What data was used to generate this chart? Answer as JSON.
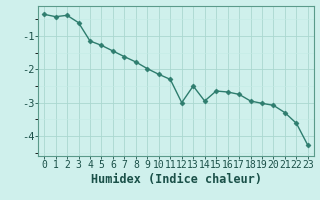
{
  "xlabel": "Humidex (Indice chaleur)",
  "x_values": [
    0,
    1,
    2,
    3,
    4,
    5,
    6,
    7,
    8,
    9,
    10,
    11,
    12,
    13,
    14,
    15,
    16,
    17,
    18,
    19,
    20,
    21,
    22,
    23
  ],
  "y_values": [
    -0.35,
    -0.42,
    -0.38,
    -0.6,
    -1.15,
    -1.28,
    -1.45,
    -1.62,
    -1.78,
    -1.98,
    -2.15,
    -2.3,
    -3.0,
    -2.5,
    -2.95,
    -2.65,
    -2.68,
    -2.75,
    -2.95,
    -3.02,
    -3.08,
    -3.3,
    -3.62,
    -4.28
  ],
  "line_color": "#2e7d6e",
  "marker": "D",
  "marker_size": 2.5,
  "background_color": "#cff0ec",
  "grid_color_major": "#aad8d0",
  "grid_color_minor": "#c4ebe5",
  "spine_color": "#5a9a8a",
  "label_color": "#1a5048",
  "ylim": [
    -4.6,
    -0.1
  ],
  "yticks": [
    -4,
    -3,
    -2,
    -1
  ],
  "xlim": [
    -0.5,
    23.5
  ],
  "linewidth": 1.0,
  "xlabel_fontsize": 8.5,
  "tick_fontsize": 7.0
}
